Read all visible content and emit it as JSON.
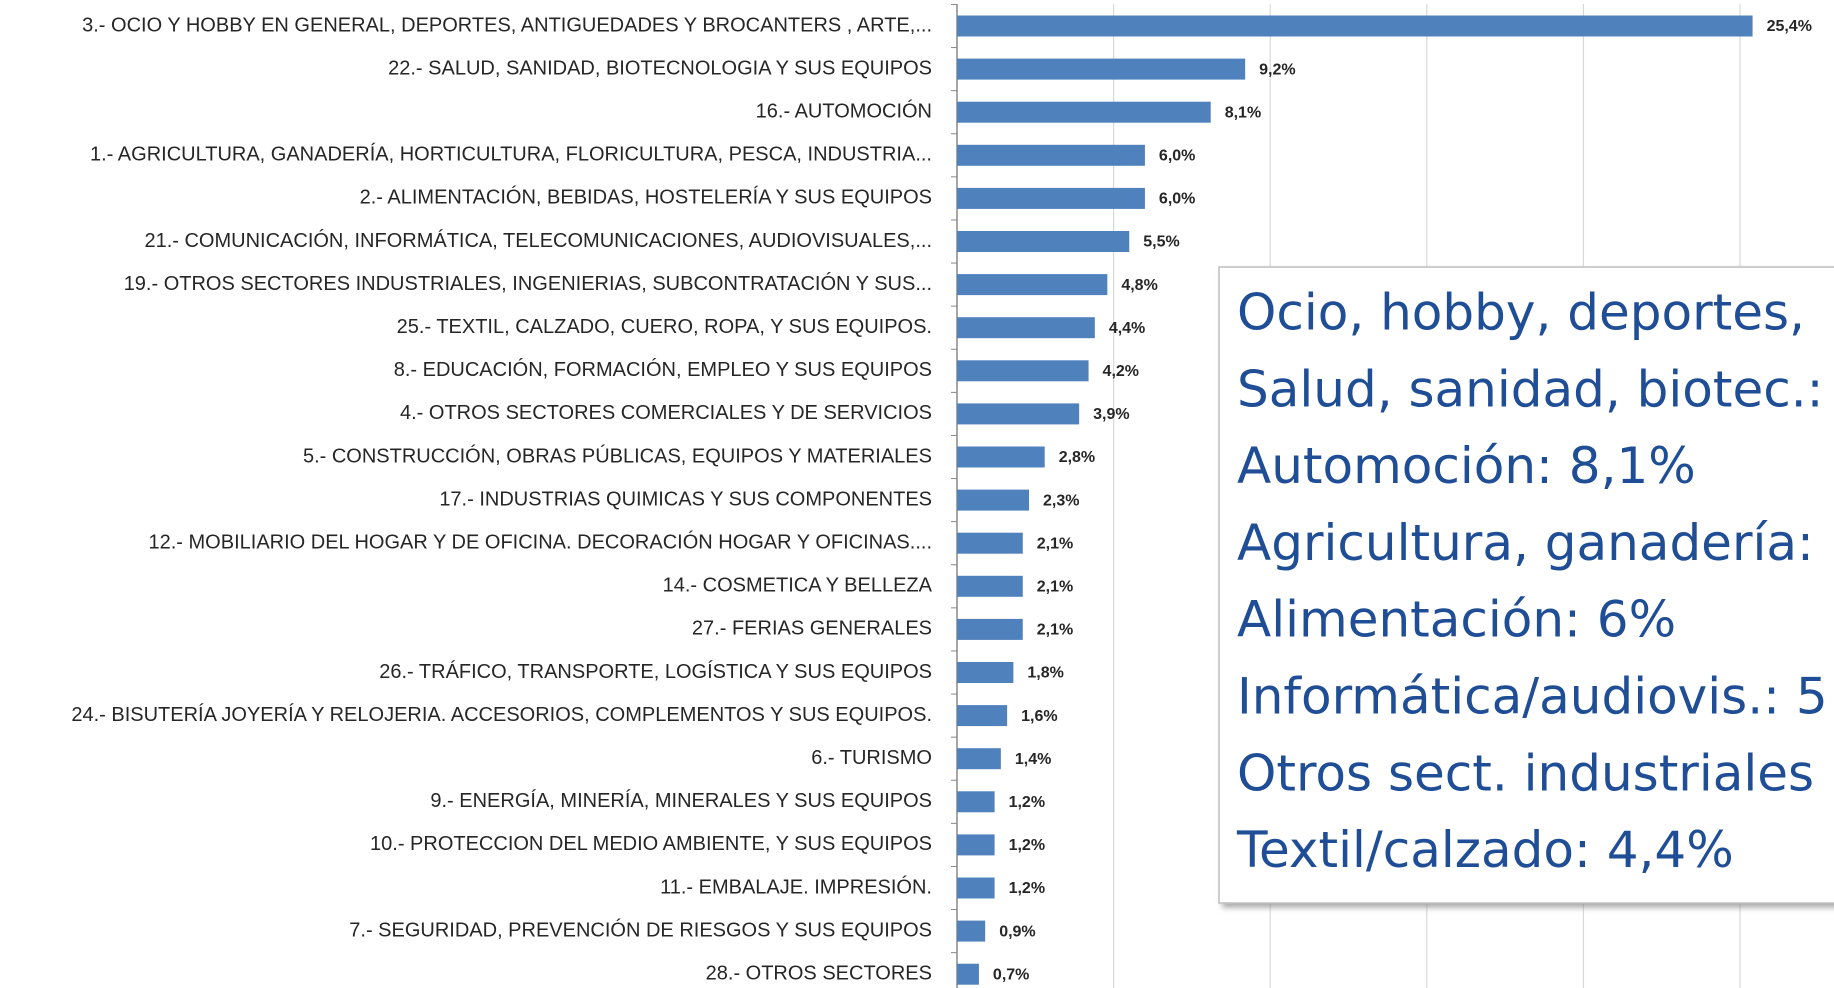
{
  "chart_data": {
    "type": "bar",
    "orientation": "horizontal",
    "categories": [
      "3.- OCIO Y HOBBY EN GENERAL, DEPORTES,  ANTIGUEDADES Y BROCANTERS , ARTE,...",
      "22.- SALUD,  SANIDAD,  BIOTECNOLOGIA  Y SUS EQUIPOS",
      "16.- AUTOMOCIÓN",
      "1.- AGRICULTURA, GANADERÍA, HORTICULTURA, FLORICULTURA, PESCA, INDUSTRIA...",
      "2.- ALIMENTACIÓN, BEBIDAS, HOSTELERÍA Y SUS EQUIPOS",
      "21.- COMUNICACIÓN, INFORMÁTICA, TELECOMUNICACIONES, AUDIOVISUALES,...",
      "19.- OTROS SECTORES INDUSTRIALES, INGENIERIAS, SUBCONTRATACIÓN Y SUS...",
      "25.- TEXTIL,  CALZADO, CUERO, ROPA, Y SUS EQUIPOS.",
      "8.- EDUCACIÓN, FORMACIÓN, EMPLEO Y SUS EQUIPOS",
      "4.- OTROS SECTORES COMERCIALES Y  DE SERVICIOS",
      "5.- CONSTRUCCIÓN, OBRAS PÚBLICAS, EQUIPOS Y MATERIALES",
      "17.- INDUSTRIAS QUIMICAS Y SUS COMPONENTES",
      "12.- MOBILIARIO DEL HOGAR Y DE  OFICINA. DECORACIÓN HOGAR Y OFICINAS....",
      "14.- COSMETICA Y BELLEZA",
      "27.- FERIAS GENERALES",
      "26.- TRÁFICO, TRANSPORTE, LOGÍSTICA Y SUS EQUIPOS",
      "24.- BISUTERÍA  JOYERÍA Y RELOJERIA. ACCESORIOS, COMPLEMENTOS Y SUS EQUIPOS.",
      "6.- TURISMO",
      "9.- ENERGÍA, MINERÍA, MINERALES Y SUS EQUIPOS",
      "10.- PROTECCION DEL MEDIO AMBIENTE, Y SUS EQUIPOS",
      "11.- EMBALAJE. IMPRESIÓN.",
      "7.- SEGURIDAD,  PREVENCIÓN DE RIESGOS Y SUS EQUIPOS",
      "28.- OTROS SECTORES"
    ],
    "values": [
      25.4,
      9.2,
      8.1,
      6.0,
      6.0,
      5.5,
      4.8,
      4.4,
      4.2,
      3.9,
      2.8,
      2.3,
      2.1,
      2.1,
      2.1,
      1.8,
      1.6,
      1.4,
      1.2,
      1.2,
      1.2,
      0.9,
      0.7
    ],
    "value_labels": [
      "25,4%",
      "9,2%",
      "8,1%",
      "6,0%",
      "6,0%",
      "5,5%",
      "4,8%",
      "4,4%",
      "4,2%",
      "3,9%",
      "2,8%",
      "2,3%",
      "2,1%",
      "2,1%",
      "2,1%",
      "1,8%",
      "1,6%",
      "1,4%",
      "1,2%",
      "1,2%",
      "1,2%",
      "0,9%",
      "0,7%"
    ],
    "color": "#4f81bd",
    "xlim": [
      0,
      28
    ],
    "xticks": [
      0,
      5,
      10,
      15,
      20,
      25
    ],
    "grid": true,
    "annotations": [
      "Ocio, hobby, deportes,",
      "Salud, sanidad, biotec.:",
      "Automoción: 8,1%",
      "Agricultura, ganadería:",
      "Alimentación: 6%",
      "Informática/audiovis.: 5",
      "Otros sect. industriales",
      "Textil/calzado: 4,4%"
    ]
  }
}
